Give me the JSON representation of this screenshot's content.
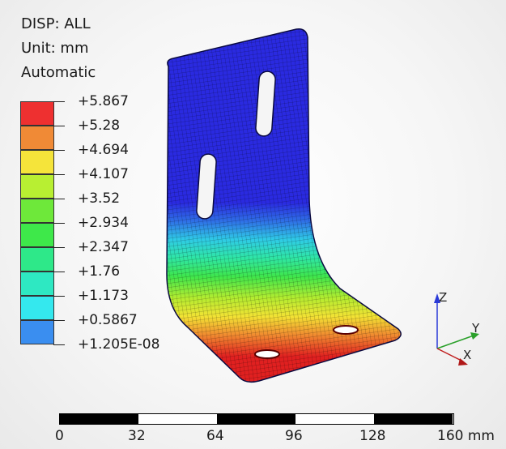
{
  "header": {
    "result_type": "DISP: ALL",
    "unit": "Unit: mm",
    "range_mode": "Automatic"
  },
  "legend": {
    "labels": [
      "+5.867",
      "+5.28",
      "+4.694",
      "+4.107",
      "+3.52",
      "+2.934",
      "+2.347",
      "+1.76",
      "+1.173",
      "+0.5867",
      "+1.205E-08"
    ],
    "colors": [
      "#ee3030",
      "#f08a36",
      "#f5e43a",
      "#b8ef32",
      "#6ee83a",
      "#3ee84a",
      "#2ee889",
      "#2ee8c2",
      "#34e8ee",
      "#3a8ef0",
      "#3a3aef"
    ]
  },
  "scale_bar": {
    "labels": [
      "0",
      "32",
      "64",
      "96",
      "128",
      "160 mm"
    ]
  },
  "triad": {
    "z": "Z",
    "y": "Y",
    "x": "X"
  },
  "colors": {
    "low": "#2a2ae0",
    "high": "#e02020"
  }
}
